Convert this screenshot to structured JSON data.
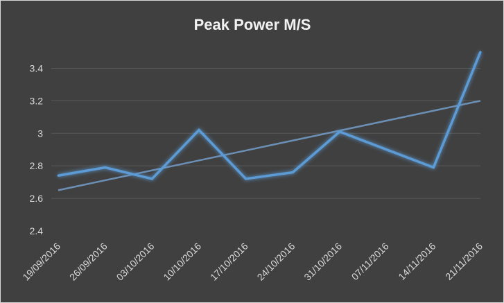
{
  "chart_data": {
    "type": "line",
    "title": "Peak Power M/S",
    "categories": [
      "19/09/2016",
      "26/09/2016",
      "03/10/2016",
      "10/10/2016",
      "17/10/2016",
      "24/10/2016",
      "31/10/2016",
      "07/11/2016",
      "14/11/2016",
      "21/11/2016"
    ],
    "series": [
      {
        "values": [
          2.74,
          2.79,
          2.72,
          3.02,
          2.72,
          2.76,
          3.01,
          null,
          2.79,
          3.5
        ]
      }
    ],
    "trendline": {
      "type": "linear",
      "start": 2.65,
      "end": 3.2
    },
    "ylim": [
      2.4,
      3.5
    ],
    "yticks": [
      "2.4",
      "2.6",
      "2.8",
      "3",
      "3.2",
      "3.4"
    ],
    "grid": true,
    "colors": {
      "background": "#404040",
      "series": "#5b9bd5",
      "trend": "#6c8fb5",
      "grid": "#595959",
      "text": "#d9d9d9"
    }
  }
}
